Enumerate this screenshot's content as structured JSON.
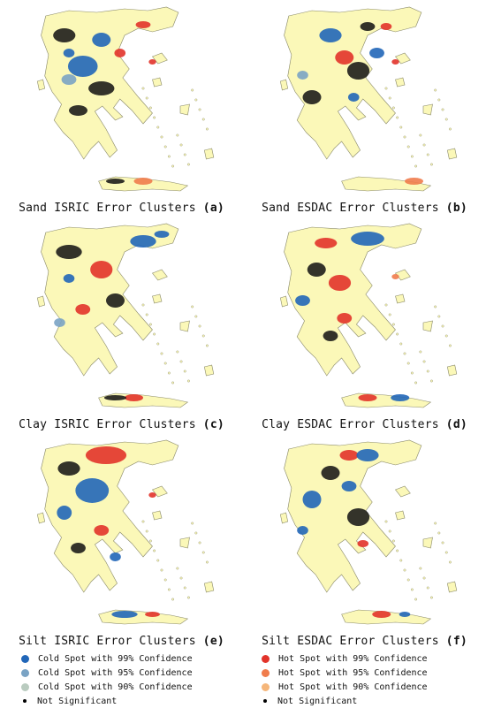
{
  "panels": [
    {
      "prefix": "Sand ISRIC Error Clusters",
      "letter": "(a)"
    },
    {
      "prefix": "Sand ESDAC Error Clusters",
      "letter": "(b)"
    },
    {
      "prefix": "Clay ISRIC Error Clusters",
      "letter": "(c)"
    },
    {
      "prefix": "Clay ESDAC Error Clusters",
      "letter": "(d)"
    },
    {
      "prefix": "Silt ISRIC Error Clusters",
      "letter": "(e)"
    },
    {
      "prefix": "Silt ESDAC Error Clusters",
      "letter": "(f)"
    }
  ],
  "legend": {
    "cold": [
      {
        "label": "Cold Spot with 99% Confidence",
        "color": "#2166b8"
      },
      {
        "label": "Cold Spot with 95% Confidence",
        "color": "#7aa3c4"
      },
      {
        "label": "Cold Spot with 90% Confidence",
        "color": "#b9cbbf"
      },
      {
        "label": "Not Significant",
        "color": "#000000"
      }
    ],
    "hot": [
      {
        "label": "Hot Spot with 99% Confidence",
        "color": "#e2332a"
      },
      {
        "label": "Hot Spot with 95% Confidence",
        "color": "#f07c4c"
      },
      {
        "label": "Hot Spot with 90% Confidence",
        "color": "#f5b67a"
      },
      {
        "label": "Not Significant",
        "color": "#000000"
      }
    ]
  },
  "colors": {
    "land": "#fbf8b8",
    "outline": "#8a8a6a"
  }
}
